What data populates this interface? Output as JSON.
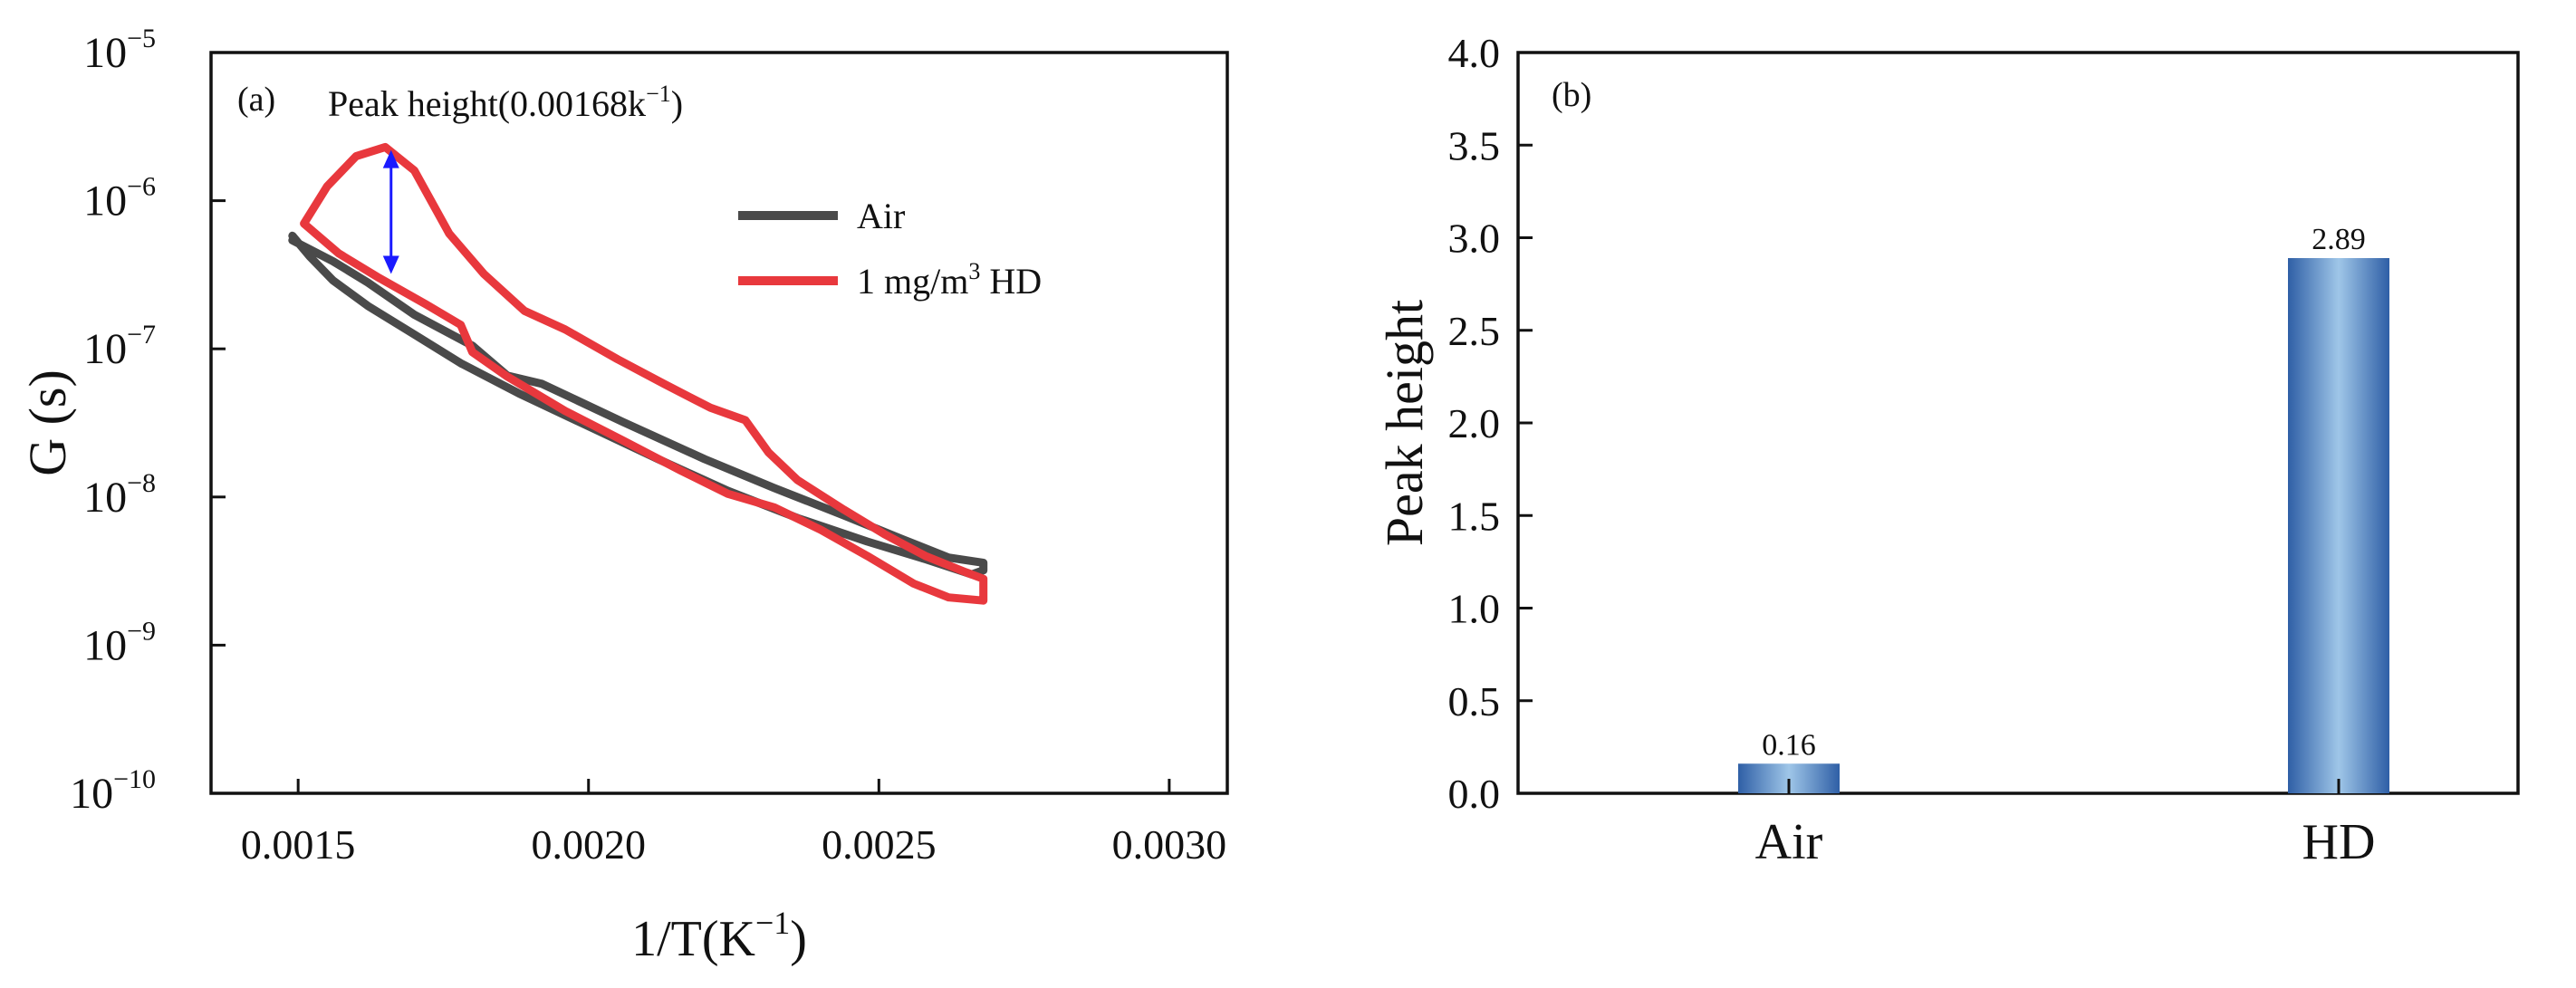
{
  "chart_data": [
    {
      "panel": "(a)",
      "type": "line",
      "title": "",
      "xlabel": "1/T(K",
      "xlabel_sup": "−1",
      "xlabel_end": ")",
      "ylabel": "G (s)",
      "xlim": [
        0.00135,
        0.0031
      ],
      "ylim": [
        1e-10,
        1e-05
      ],
      "yscale": "log",
      "x_ticks": [
        0.0015,
        0.002,
        0.0025,
        0.003
      ],
      "x_tick_labels": [
        "0.0015",
        "0.0020",
        "0.0025",
        "0.0030"
      ],
      "y_tick_exponents": [
        "−5",
        "−6",
        "−7",
        "−8",
        "−9",
        "−10"
      ],
      "y_tick_values": [
        1e-05,
        1e-06,
        1e-07,
        1e-08,
        1e-09,
        1e-10
      ],
      "legend": [
        {
          "name": "Air",
          "color": "#4a4a4a"
        },
        {
          "name": "1 mg/m",
          "sup": "3",
          "suffix": " HD",
          "color": "#e8383d"
        }
      ],
      "annotation": {
        "text": "Peak height(0.00168k",
        "sup": "−1",
        "end": ")",
        "x": 0.00166,
        "y_top": 2.2e-06,
        "y_bottom": 3.2e-07,
        "color": "#1a1aff"
      },
      "series": [
        {
          "name": "Air",
          "color": "#4a4a4a",
          "points": [
            [
              0.00149,
              5.8e-07
            ],
            [
              0.00152,
              4.2e-07
            ],
            [
              0.00156,
              2.9e-07
            ],
            [
              0.00162,
              1.95e-07
            ],
            [
              0.0017,
              1.25e-07
            ],
            [
              0.00178,
              8e-08
            ],
            [
              0.00188,
              5e-08
            ],
            [
              0.002,
              3e-08
            ],
            [
              0.00212,
              1.8e-08
            ],
            [
              0.00224,
              1.1e-08
            ],
            [
              0.00236,
              7.2e-09
            ],
            [
              0.00248,
              5e-09
            ],
            [
              0.00258,
              3.8e-09
            ],
            [
              0.00266,
              3e-09
            ],
            [
              0.00268,
              3.2e-09
            ],
            [
              0.00268,
              3.6e-09
            ],
            [
              0.00262,
              3.9e-09
            ],
            [
              0.00254,
              5.2e-09
            ],
            [
              0.00244,
              7.5e-09
            ],
            [
              0.00232,
              1.15e-08
            ],
            [
              0.0022,
              1.8e-08
            ],
            [
              0.00206,
              3.2e-08
            ],
            [
              0.00192,
              5.8e-08
            ],
            [
              0.00186,
              6.6e-08
            ],
            [
              0.0018,
              1.05e-07
            ],
            [
              0.0017,
              1.7e-07
            ],
            [
              0.00162,
              2.8e-07
            ],
            [
              0.00156,
              3.9e-07
            ],
            [
              0.00149,
              5.4e-07
            ]
          ]
        },
        {
          "name": "1 mg/m3 HD",
          "color": "#e8383d",
          "points": [
            [
              0.00151,
              7e-07
            ],
            [
              0.00155,
              1.25e-06
            ],
            [
              0.0016,
              2e-06
            ],
            [
              0.00165,
              2.3e-06
            ],
            [
              0.0017,
              1.6e-06
            ],
            [
              0.00176,
              6e-07
            ],
            [
              0.00182,
              3.2e-07
            ],
            [
              0.00189,
              1.8e-07
            ],
            [
              0.00196,
              1.35e-07
            ],
            [
              0.00205,
              8.5e-08
            ],
            [
              0.00213,
              5.8e-08
            ],
            [
              0.00221,
              4e-08
            ],
            [
              0.00227,
              3.3e-08
            ],
            [
              0.00231,
              2e-08
            ],
            [
              0.00236,
              1.3e-08
            ],
            [
              0.00244,
              8.2e-09
            ],
            [
              0.00251,
              5.6e-09
            ],
            [
              0.00258,
              4e-09
            ],
            [
              0.00265,
              3.1e-09
            ],
            [
              0.00268,
              2.8e-09
            ],
            [
              0.00268,
              2e-09
            ],
            [
              0.00262,
              2.1e-09
            ],
            [
              0.00256,
              2.6e-09
            ],
            [
              0.00248,
              4e-09
            ],
            [
              0.0024,
              6e-09
            ],
            [
              0.00232,
              8.5e-09
            ],
            [
              0.00224,
              1.05e-08
            ],
            [
              0.00216,
              1.5e-08
            ],
            [
              0.00206,
              2.4e-08
            ],
            [
              0.00196,
              3.8e-08
            ],
            [
              0.00186,
              6.5e-08
            ],
            [
              0.0018,
              9.5e-08
            ],
            [
              0.00178,
              1.45e-07
            ],
            [
              0.00172,
              2e-07
            ],
            [
              0.00164,
              3e-07
            ],
            [
              0.00157,
              4.4e-07
            ],
            [
              0.00153,
              6e-07
            ],
            [
              0.00151,
              7e-07
            ]
          ]
        }
      ]
    },
    {
      "panel": "(b)",
      "type": "bar",
      "title": "",
      "xlabel": "",
      "ylabel": "Peak height",
      "categories": [
        "Air",
        "HD"
      ],
      "values": [
        0.16,
        2.89
      ],
      "value_labels": [
        "0.16",
        "2.89"
      ],
      "ylim": [
        0,
        4.0
      ],
      "y_ticks": [
        0,
        0.5,
        1.0,
        1.5,
        2.0,
        2.5,
        3.0,
        3.5,
        4.0
      ],
      "y_tick_labels": [
        "0.0",
        "0.5",
        "1.0",
        "1.5",
        "2.0",
        "2.5",
        "3.0",
        "3.5",
        "4.0"
      ],
      "bar_color_dark": "#2f5fa6",
      "bar_color_light": "#9fc6e8"
    }
  ]
}
